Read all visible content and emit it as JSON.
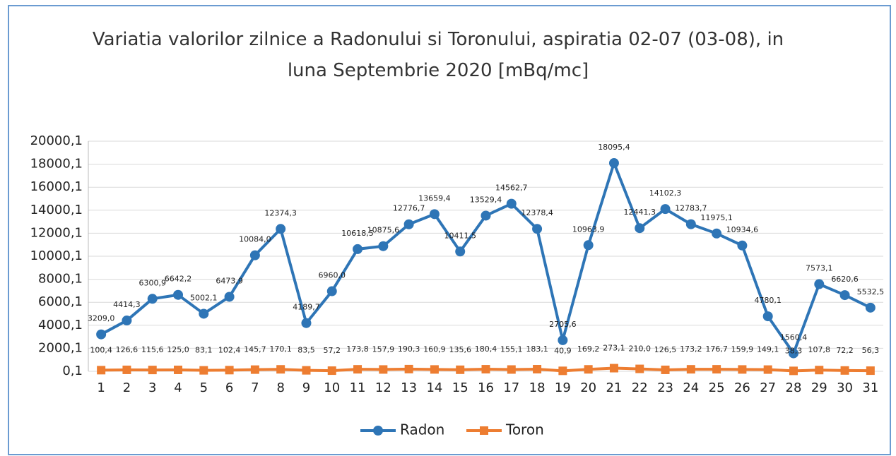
{
  "chart_data": {
    "type": "line",
    "title": "Variatia valorilor zilnice a Radonului si Toronului, aspiratia 02-07 (03-08),  in luna Septembrie 2020 [mBq/mc]",
    "categories": [
      "1",
      "2",
      "3",
      "4",
      "5",
      "6",
      "7",
      "8",
      "9",
      "10",
      "11",
      "12",
      "13",
      "14",
      "15",
      "16",
      "17",
      "18",
      "19",
      "20",
      "21",
      "22",
      "23",
      "24",
      "25",
      "26",
      "27",
      "28",
      "29",
      "30",
      "31"
    ],
    "series": [
      {
        "name": "Radon",
        "color": "#2e75b6",
        "values": [
          3209.0,
          4414.3,
          6300.9,
          6642.2,
          5002.1,
          6473.9,
          10084.0,
          12374.3,
          4189.7,
          6960.0,
          10618.5,
          10875.6,
          12776.7,
          13659.4,
          10411.5,
          13529.4,
          14562.7,
          12378.4,
          2705.6,
          10963.9,
          18095.4,
          12441.3,
          14102.3,
          12783.7,
          11975.1,
          10934.6,
          4780.1,
          1560.4,
          7573.1,
          6620.6,
          5532.5
        ],
        "value_labels": [
          "3209,0",
          "4414,3",
          "6300,9",
          "6642,2",
          "5002,1",
          "6473,9",
          "10084,0",
          "12374,3",
          "4189,7",
          "6960,0",
          "10618,5",
          "10875,6",
          "12776,7",
          "13659,4",
          "10411,5",
          "13529,4",
          "14562,7",
          "12378,4",
          "2705,6",
          "10963,9",
          "18095,4",
          "12441,3",
          "14102,3",
          "12783,7",
          "11975,1",
          "10934,6",
          "4780,1",
          "1560,4",
          "7573,1",
          "6620,6",
          "5532,5"
        ]
      },
      {
        "name": "Toron",
        "color": "#ed7d31",
        "values": [
          100.4,
          126.6,
          115.6,
          125.0,
          83.1,
          102.4,
          145.7,
          170.1,
          83.5,
          57.2,
          173.8,
          157.9,
          190.3,
          160.9,
          135.6,
          180.4,
          155.1,
          183.1,
          40.9,
          169.2,
          273.1,
          210.0,
          126.5,
          173.2,
          176.7,
          159.9,
          149.1,
          38.3,
          107.8,
          72.2,
          56.3
        ],
        "value_labels": [
          "100,4",
          "126,6",
          "115,6",
          "125,0",
          "83,1",
          "102,4",
          "145,7",
          "170,1",
          "83,5",
          "57,2",
          "173,8",
          "157,9",
          "190,3",
          "160,9",
          "135,6",
          "180,4",
          "155,1",
          "183,1",
          "40,9",
          "169,2",
          "273,1",
          "210,0",
          "126,5",
          "173,2",
          "176,7",
          "159,9",
          "149,1",
          "38,3",
          "107,8",
          "72,2",
          "56,3"
        ]
      }
    ],
    "ylim": [
      0.1,
      20000.1
    ],
    "yticks": [
      {
        "value": 0.1,
        "label": "0,1"
      },
      {
        "value": 2000.1,
        "label": "2000,1"
      },
      {
        "value": 4000.1,
        "label": "4000,1"
      },
      {
        "value": 6000.1,
        "label": "6000,1"
      },
      {
        "value": 8000.1,
        "label": "8000,1"
      },
      {
        "value": 10000.1,
        "label": "10000,1"
      },
      {
        "value": 12000.1,
        "label": "12000,1"
      },
      {
        "value": 14000.1,
        "label": "14000,1"
      },
      {
        "value": 16000.1,
        "label": "16000,1"
      },
      {
        "value": 18000.1,
        "label": "18000,1"
      },
      {
        "value": 20000.1,
        "label": "20000,1"
      }
    ],
    "grid": true,
    "legend": "bottom"
  }
}
